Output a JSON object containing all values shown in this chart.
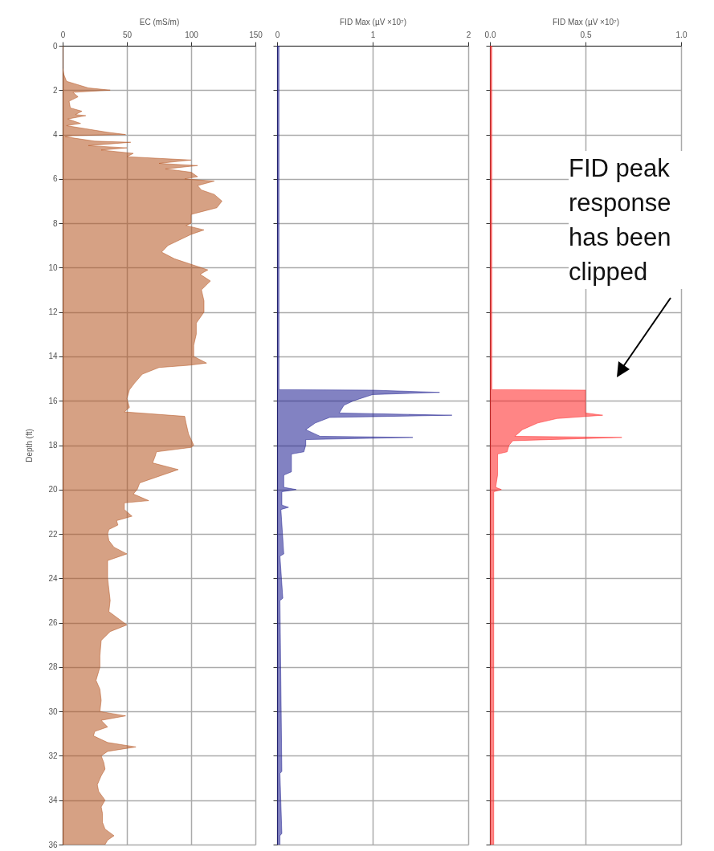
{
  "chart_data": [
    {
      "type": "area",
      "orientation": "horizontal",
      "xlabel": "EC (mS/m)",
      "ylabel": "Depth (ft)",
      "xlim": [
        0,
        150
      ],
      "xticks": [
        0,
        50,
        100,
        150
      ],
      "ylim": [
        36,
        0
      ],
      "yticks": [
        0,
        2,
        4,
        6,
        8,
        10,
        12,
        14,
        16,
        18,
        20,
        22,
        24,
        26,
        28,
        30,
        32,
        34,
        36
      ],
      "grid": true,
      "series": [
        {
          "color": "#b4531f",
          "x": [
            0,
            1.0,
            1.3,
            1.6,
            1.9,
            2.0,
            2.1,
            2.3,
            2.5,
            2.8,
            2.95,
            3.1,
            3.15,
            3.3,
            3.5,
            3.6,
            3.9,
            4.0,
            4.05,
            4.1,
            4.3,
            4.35,
            4.5,
            4.6,
            4.7,
            4.85,
            5.0,
            5.15,
            5.3,
            5.4,
            5.55,
            5.7,
            5.9,
            6.0,
            6.1,
            6.3,
            6.5,
            6.7,
            7.0,
            7.3,
            7.6,
            8.0,
            8.1,
            8.3,
            8.5,
            9.0,
            9.3,
            9.6,
            9.85,
            10.1,
            10.3,
            10.6,
            11.0,
            11.5,
            12.0,
            12.5,
            13.0,
            13.5,
            14.0,
            14.3,
            14.4,
            14.5,
            14.8,
            15.2,
            15.5,
            15.9,
            16.3,
            16.5,
            16.7,
            17.0,
            17.5,
            18.0,
            18.1,
            18.3,
            18.5,
            18.8,
            19.1,
            19.4,
            19.7,
            20.0,
            20.2,
            20.5,
            20.6,
            20.9,
            21.2,
            21.4,
            21.6,
            21.8,
            22.0,
            22.3,
            22.6,
            22.9,
            23.2,
            23.5,
            24.0,
            24.5,
            25.0,
            25.5,
            26.1,
            26.4,
            26.8,
            27.5,
            28.0,
            28.6,
            29.0,
            29.5,
            30.0,
            30.2,
            30.4,
            30.7,
            30.9,
            31.1,
            31.4,
            31.6,
            31.8,
            32.0,
            32.3,
            32.6,
            32.9,
            33.3,
            33.6,
            34.0,
            34.3,
            34.6,
            35.0,
            35.3,
            35.6,
            35.8,
            36.0
          ],
          "values": [
            0,
            0,
            1,
            3,
            20,
            37,
            8,
            12,
            5,
            6,
            15,
            10,
            18,
            4,
            14,
            3,
            35,
            49,
            8,
            2,
            25,
            53,
            20,
            50,
            30,
            55,
            50,
            100,
            75,
            105,
            80,
            100,
            105,
            95,
            118,
            105,
            108,
            118,
            124,
            120,
            100,
            100,
            96,
            110,
            100,
            82,
            77,
            87,
            100,
            113,
            107,
            115,
            108,
            110,
            110,
            104,
            104,
            102,
            102,
            112,
            98,
            75,
            62,
            56,
            52,
            50,
            52,
            48,
            95,
            96,
            98,
            102,
            100,
            73,
            72,
            70,
            90,
            75,
            60,
            58,
            55,
            67,
            48,
            48,
            54,
            42,
            43,
            36,
            35,
            36,
            40,
            50,
            35,
            35,
            35,
            36,
            37,
            36,
            50,
            37,
            30,
            29,
            29,
            26,
            29,
            30,
            29,
            49,
            30,
            35,
            25,
            24,
            35,
            57,
            35,
            30,
            32,
            33,
            30,
            27,
            28,
            33,
            30,
            31,
            31,
            33,
            40,
            35,
            33
          ]
        }
      ]
    },
    {
      "type": "area",
      "orientation": "horizontal",
      "xlabel": "FID Max (µV ×10⁷)",
      "xlim": [
        0,
        2
      ],
      "xticks": [
        0,
        1,
        2
      ],
      "ylim": [
        36,
        0
      ],
      "yticks": [
        0,
        2,
        4,
        6,
        8,
        10,
        12,
        14,
        16,
        18,
        20,
        22,
        24,
        26,
        28,
        30,
        32,
        34,
        36
      ],
      "grid": true,
      "tick_labels": "x",
      "series": [
        {
          "color": "#1c1c8f",
          "x": [
            0,
            15.5,
            15.52,
            15.62,
            15.72,
            16.0,
            16.2,
            16.55,
            16.65,
            16.75,
            17.0,
            17.3,
            17.6,
            17.65,
            17.75,
            18.0,
            18.3,
            18.4,
            19.2,
            19.35,
            19.9,
            20.0,
            20.1,
            20.7,
            20.8,
            20.9,
            22.9,
            23.0,
            24.9,
            25.0,
            32.7,
            32.8,
            35.5,
            35.6,
            36.0
          ],
          "values": [
            0.02,
            0.02,
            1.0,
            1.7,
            1.0,
            0.8,
            0.7,
            0.65,
            1.83,
            0.55,
            0.4,
            0.3,
            0.45,
            1.42,
            0.3,
            0.3,
            0.28,
            0.15,
            0.15,
            0.07,
            0.07,
            0.2,
            0.05,
            0.05,
            0.12,
            0.04,
            0.07,
            0.03,
            0.06,
            0.03,
            0.05,
            0.03,
            0.05,
            0.03,
            0.03
          ]
        }
      ]
    },
    {
      "type": "area",
      "orientation": "horizontal",
      "xlabel": "FID Max (µV ×10⁷)",
      "xlim": [
        0,
        1
      ],
      "xticks": [
        {
          "value": 0,
          "label": "0.0"
        },
        {
          "value": 0.5,
          "label": "0.5"
        },
        {
          "value": 1,
          "label": "1.0"
        }
      ],
      "ylim": [
        36,
        0
      ],
      "yticks": [
        0,
        2,
        4,
        6,
        8,
        10,
        12,
        14,
        16,
        18,
        20,
        22,
        24,
        26,
        28,
        30,
        32,
        34,
        36
      ],
      "grid": true,
      "tick_labels": "x",
      "annotations": [
        "FID peak response has been clipped"
      ],
      "series": [
        {
          "color": "#ff2020",
          "x": [
            0,
            15.5,
            15.52,
            16.55,
            16.65,
            16.8,
            17.0,
            17.3,
            17.6,
            17.65,
            17.8,
            18.0,
            18.3,
            18.4,
            19.35,
            19.9,
            20.0,
            20.1,
            36.0
          ],
          "values": [
            0.01,
            0.01,
            0.5,
            0.5,
            0.59,
            0.35,
            0.25,
            0.17,
            0.13,
            0.69,
            0.12,
            0.1,
            0.09,
            0.04,
            0.04,
            0.03,
            0.06,
            0.02,
            0.02
          ]
        }
      ]
    }
  ]
}
